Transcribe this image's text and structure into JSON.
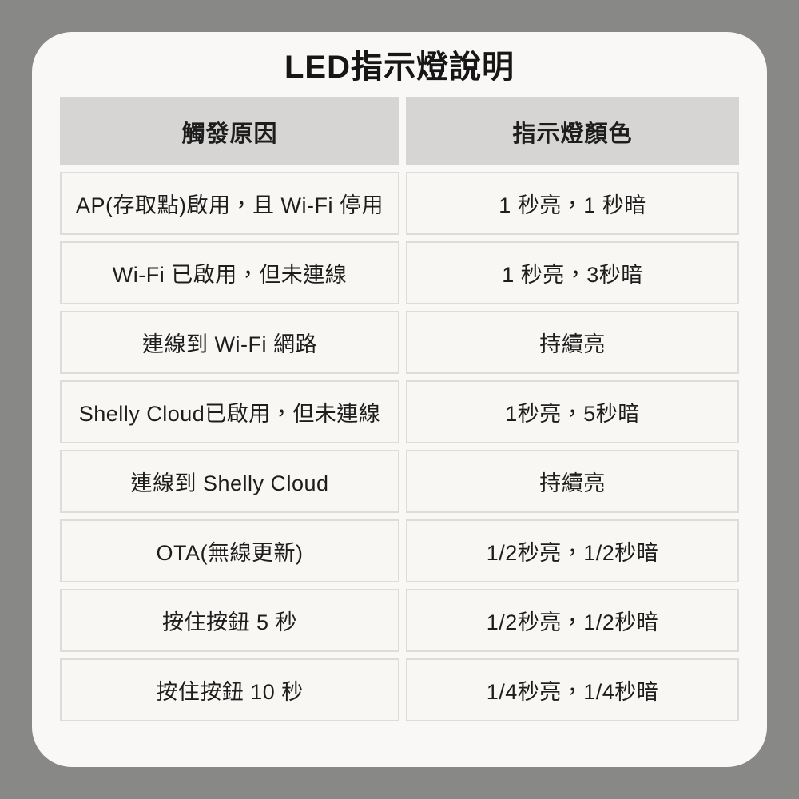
{
  "title": "LED指示燈說明",
  "colors": {
    "page_background": "#888886",
    "card_background": "#f9f8f6",
    "header_cell_background": "#d6d5d3",
    "cell_background": "#f8f7f4",
    "cell_border": "#dddcd9",
    "text": "#1d1d1d"
  },
  "table": {
    "headers": [
      "觸發原因",
      "指示燈顏色"
    ],
    "rows": [
      {
        "trigger": "AP(存取點)啟用，且 Wi-Fi 停用",
        "color": "1 秒亮，1 秒暗"
      },
      {
        "trigger": "Wi-Fi 已啟用，但未連線",
        "color": "1 秒亮，3秒暗"
      },
      {
        "trigger": "連線到 Wi-Fi 網路",
        "color": "持續亮"
      },
      {
        "trigger": "Shelly Cloud已啟用，但未連線",
        "color": "1秒亮，5秒暗"
      },
      {
        "trigger": "連線到 Shelly Cloud",
        "color": "持續亮"
      },
      {
        "trigger": "OTA(無線更新)",
        "color": "1/2秒亮，1/2秒暗"
      },
      {
        "trigger": "按住按鈕 5 秒",
        "color": "1/2秒亮，1/2秒暗"
      },
      {
        "trigger": "按住按鈕 10 秒",
        "color": "1/4秒亮，1/4秒暗"
      }
    ]
  }
}
